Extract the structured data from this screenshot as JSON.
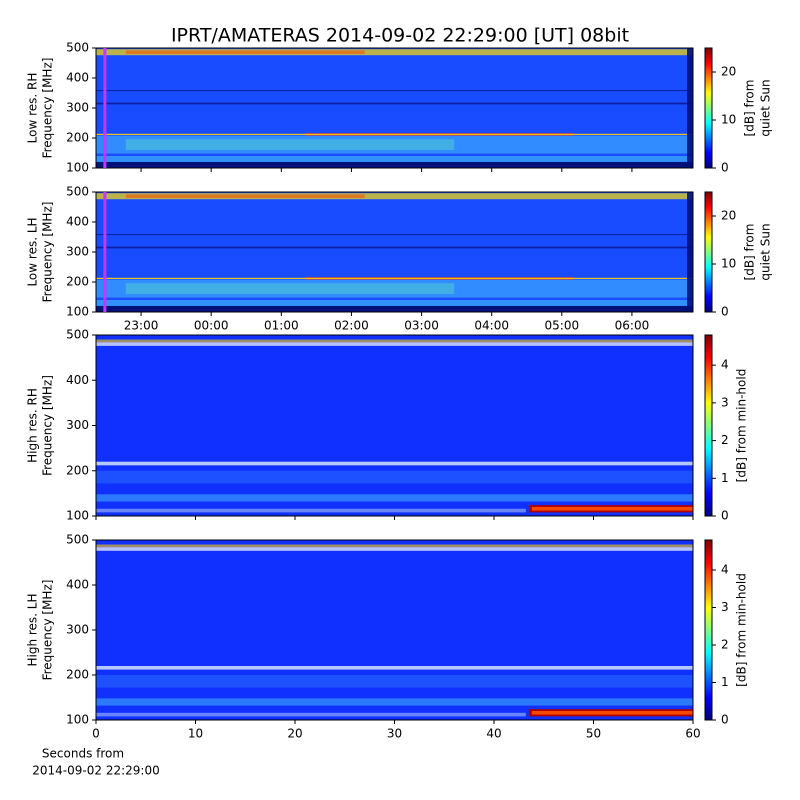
{
  "figure": {
    "title": "IPRT/AMATERAS 2014-09-02 22:29:00 [UT]   08bit",
    "xlabel": [
      "Seconds from",
      "2014-09-02 22:29:00"
    ]
  },
  "chart_data": [
    {
      "type": "spectrogram",
      "ylabel": [
        "Low res. RH",
        "Frequency [MHz]"
      ],
      "xlim": [
        22.357,
        30.871
      ],
      "xticks": [
        {
          "value": 23,
          "label": "23:00"
        },
        {
          "value": 24,
          "label": "00:00"
        },
        {
          "value": 25,
          "label": "01:00"
        },
        {
          "value": 26,
          "label": "02:00"
        },
        {
          "value": 27,
          "label": "03:00"
        },
        {
          "value": 28,
          "label": "04:00"
        },
        {
          "value": 29,
          "label": "05:00"
        },
        {
          "value": 30,
          "label": "06:00"
        }
      ],
      "show_xtick_labels": false,
      "marker_x": 22.483,
      "marker_color": "#cc33ff",
      "ylim": [
        100,
        500
      ],
      "yticks": [
        100,
        200,
        300,
        400,
        500
      ],
      "colorbar": {
        "label": [
          "[dB] from",
          "quiet Sun"
        ],
        "lim": [
          0,
          25
        ],
        "ticks": [
          0,
          10,
          20
        ]
      }
    },
    {
      "type": "spectrogram",
      "ylabel": [
        "Low res. LH",
        "Frequency [MHz]"
      ],
      "xlim": [
        22.357,
        30.871
      ],
      "xticks": [
        {
          "value": 23,
          "label": "23:00"
        },
        {
          "value": 24,
          "label": "00:00"
        },
        {
          "value": 25,
          "label": "01:00"
        },
        {
          "value": 26,
          "label": "02:00"
        },
        {
          "value": 27,
          "label": "03:00"
        },
        {
          "value": 28,
          "label": "04:00"
        },
        {
          "value": 29,
          "label": "05:00"
        },
        {
          "value": 30,
          "label": "06:00"
        }
      ],
      "show_xtick_labels": true,
      "marker_x": 22.483,
      "marker_color": "#cc33ff",
      "ylim": [
        100,
        500
      ],
      "yticks": [
        100,
        200,
        300,
        400,
        500
      ],
      "colorbar": {
        "label": [
          "[dB] from",
          "quiet Sun"
        ],
        "lim": [
          0,
          25
        ],
        "ticks": [
          0,
          10,
          20
        ]
      }
    },
    {
      "type": "spectrogram",
      "ylabel": [
        "High res. RH",
        "Frequency [MHz]"
      ],
      "xlim": [
        0,
        60
      ],
      "xticks": [
        0,
        10,
        20,
        30,
        40,
        50,
        60
      ],
      "show_xtick_labels": false,
      "ylim": [
        100,
        500
      ],
      "yticks": [
        100,
        200,
        300,
        400,
        500
      ],
      "colorbar": {
        "label": [
          "[dB] from min-hold"
        ],
        "lim": [
          0,
          4.8
        ],
        "ticks": [
          0,
          1,
          2,
          3,
          4
        ]
      }
    },
    {
      "type": "spectrogram",
      "ylabel": [
        "High res. LH",
        "Frequency [MHz]"
      ],
      "xlim": [
        0,
        60
      ],
      "xticks": [
        0,
        10,
        20,
        30,
        40,
        50,
        60
      ],
      "show_xtick_labels": true,
      "ylim": [
        100,
        500
      ],
      "yticks": [
        100,
        200,
        300,
        400,
        500
      ],
      "colorbar": {
        "label": [
          "[dB] from min-hold"
        ],
        "lim": [
          0,
          4.8
        ],
        "ticks": [
          0,
          1,
          2,
          3,
          4
        ]
      }
    }
  ]
}
